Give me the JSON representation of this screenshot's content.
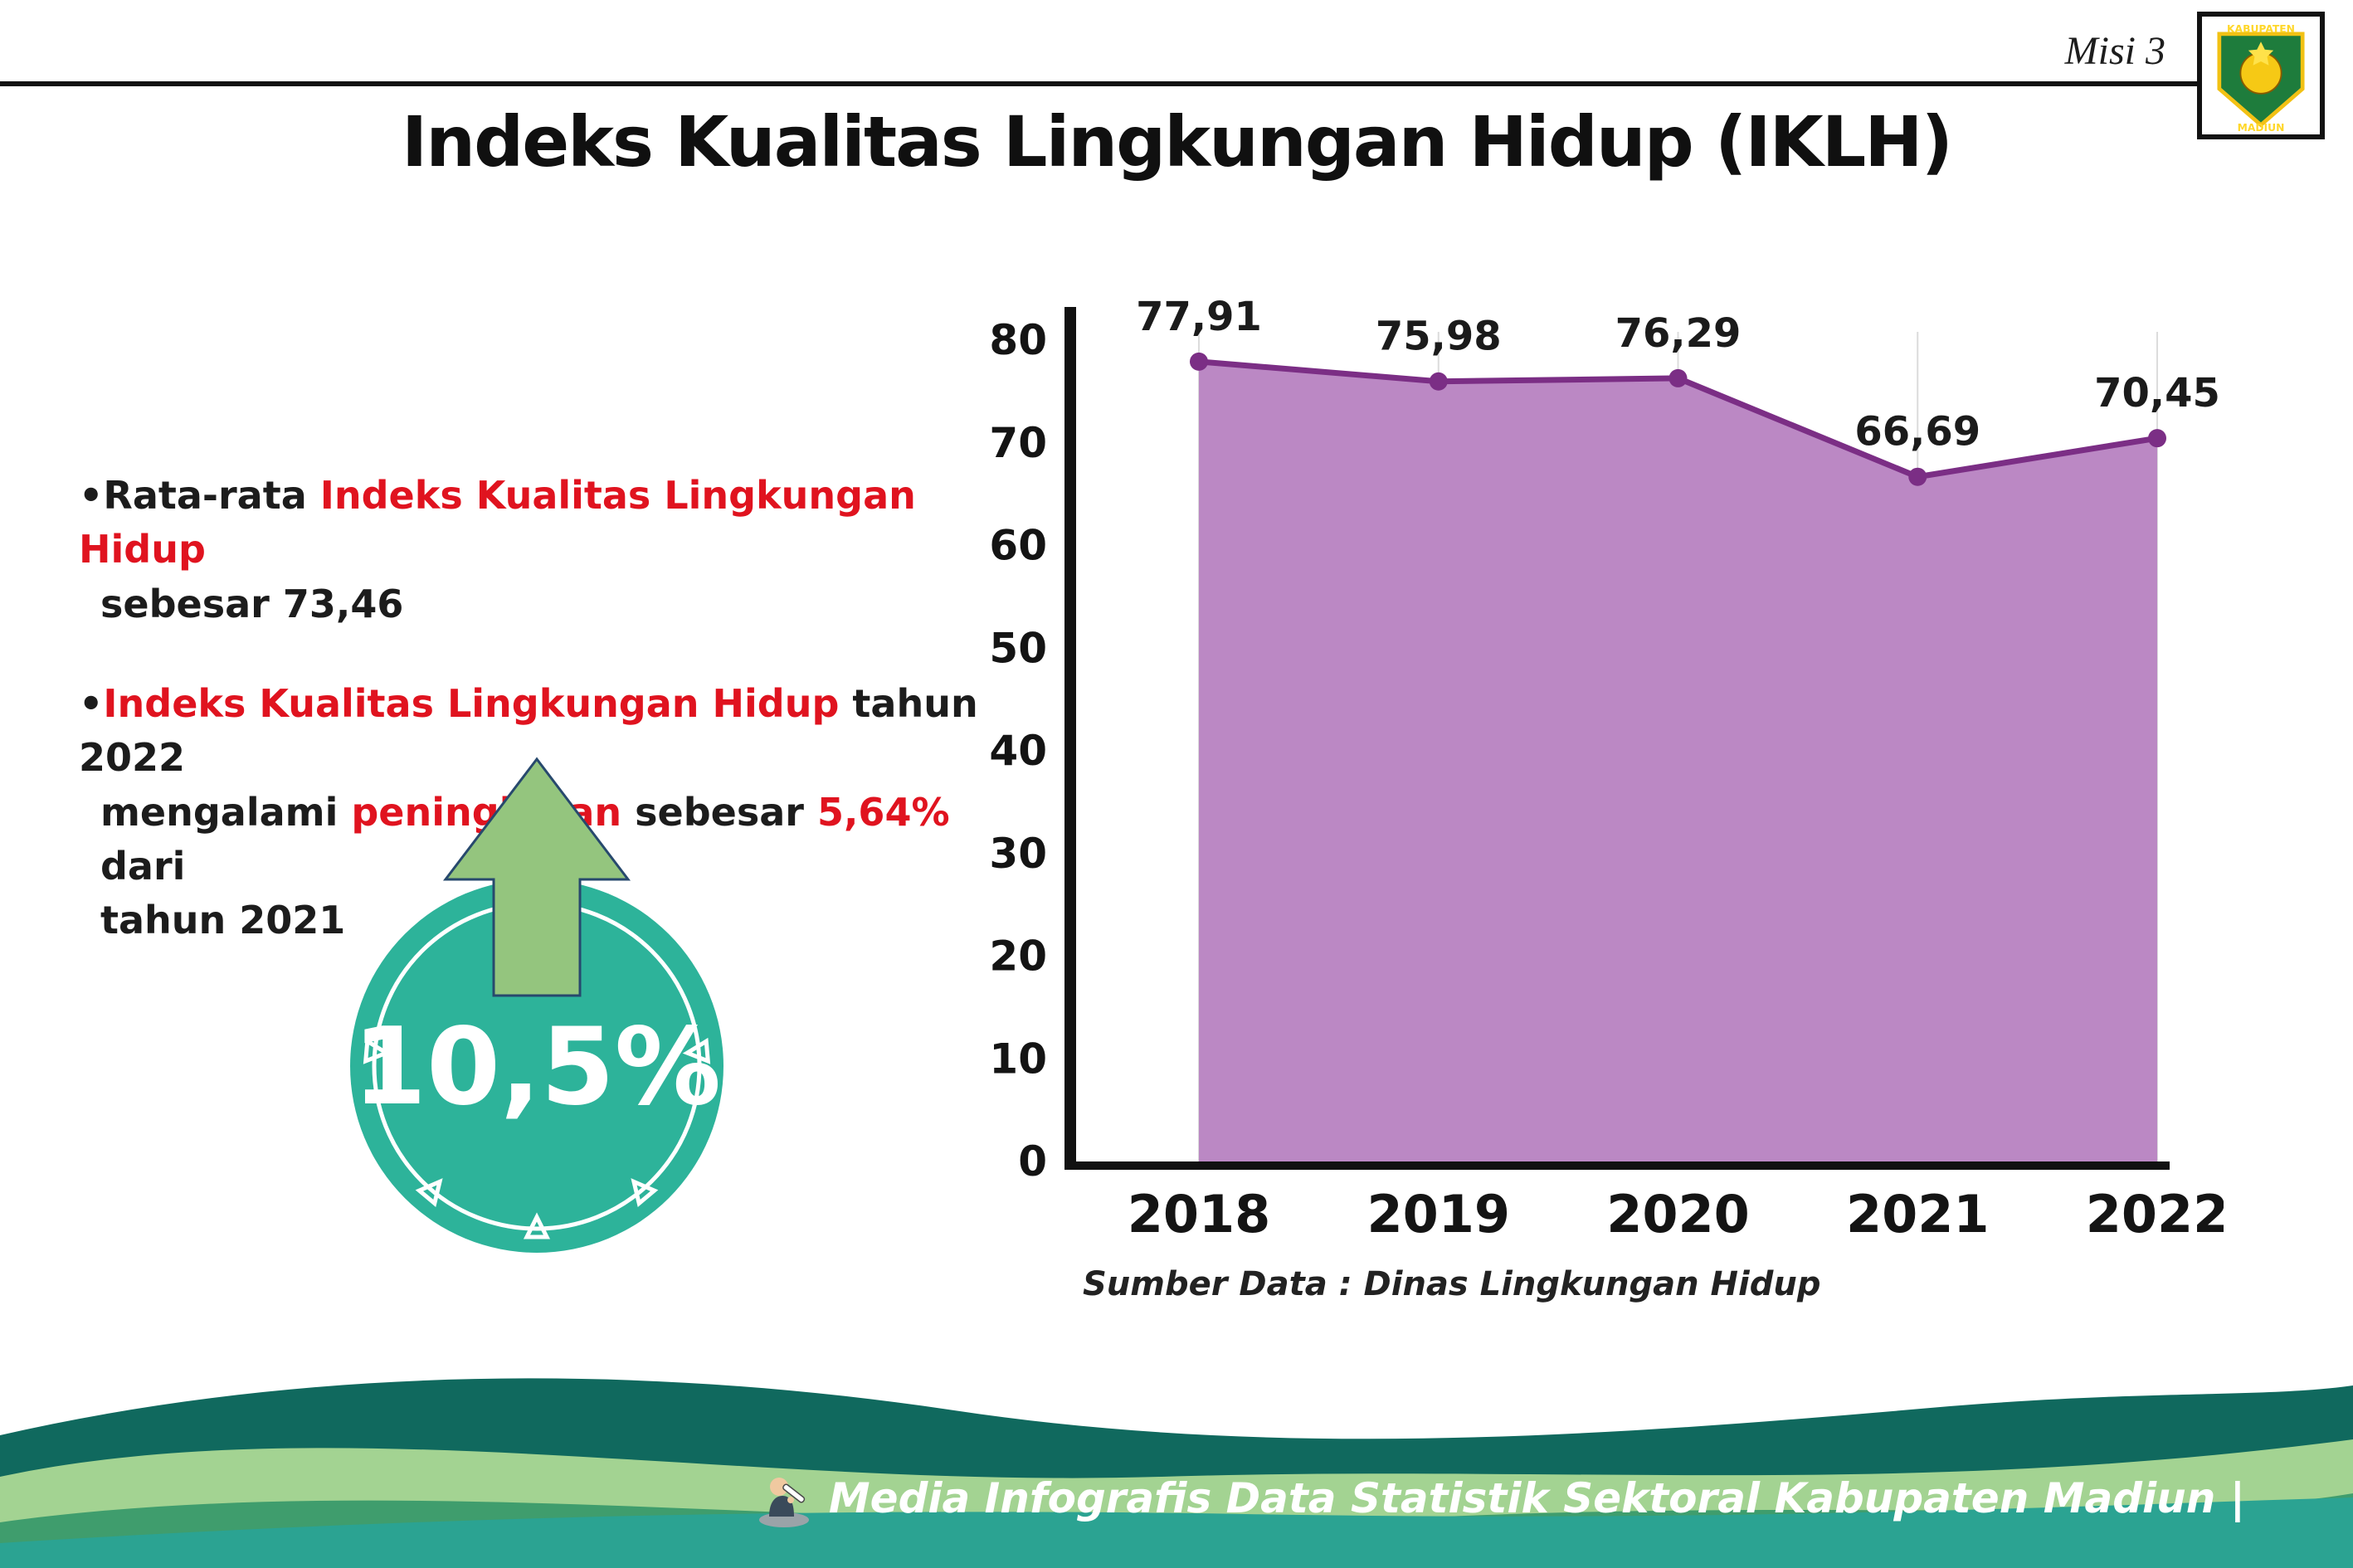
{
  "header": {
    "misi": "Misi 3",
    "logo": {
      "top": "KABUPATEN",
      "bottom": "MADIUN"
    }
  },
  "title": "Indeks Kualitas Lingkungan Hidup (IKLH)",
  "bullets": {
    "dot": "•",
    "b1": {
      "pre": "Rata-rata ",
      "red": "Indeks Kualitas Lingkungan Hidup",
      "post": "sebesar 73,46"
    },
    "b2": {
      "l1red": "Indeks Kualitas Lingkungan Hidup",
      "l1black": " tahun 2022",
      "l2a": "mengalami ",
      "l2red1": "peningkatan",
      "l2b": " sebesar ",
      "l2red2": "5,64%",
      "l2c": " dari",
      "l3": "tahun 2021"
    }
  },
  "badge": {
    "value": "10,5%"
  },
  "chart_data": {
    "type": "area",
    "categories": [
      "2018",
      "2019",
      "2020",
      "2021",
      "2022"
    ],
    "values": [
      77.91,
      75.98,
      76.29,
      66.69,
      70.45
    ],
    "labels": [
      "77,91",
      "75,98",
      "76,29",
      "66,69",
      "70,45"
    ],
    "title": "",
    "xlabel": "",
    "ylabel": "",
    "ylim": [
      0,
      80
    ],
    "yticks": [
      0,
      10,
      20,
      30,
      40,
      50,
      60,
      70,
      80
    ],
    "grid": "vertical",
    "legend": "none",
    "source": "Sumber Data : Dinas Lingkungan Hidup",
    "colors": {
      "area": "#bb88c4",
      "line": "#7b2e85",
      "point": "#7b2e85",
      "label": "#1b1b1b"
    }
  },
  "footer": {
    "text": "Media Infografis Data Statistik Sektoral Kabupaten Madiun |"
  }
}
